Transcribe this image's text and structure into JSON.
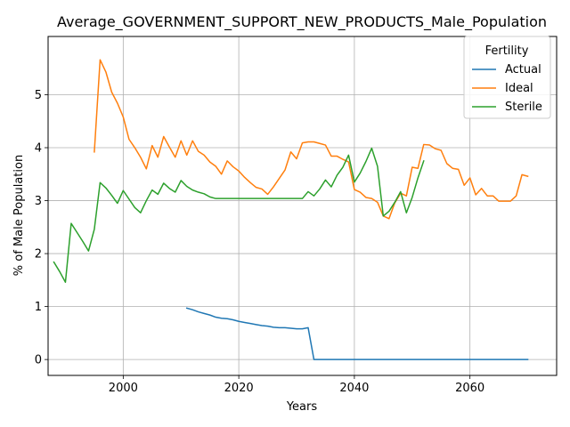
{
  "chart_data": {
    "type": "line",
    "title": "Average_GOVERNMENT_SUPPORT_NEW_PRODUCTS_Male_Population",
    "xlabel": "Years",
    "ylabel": "% of Male Population",
    "xlim": [
      1987,
      2075
    ],
    "ylim": [
      -0.3,
      6.1
    ],
    "xticks": [
      2000,
      2020,
      2040,
      2060
    ],
    "yticks": [
      0,
      1,
      2,
      3,
      4,
      5
    ],
    "grid": true,
    "legend": {
      "title": "Fertility",
      "position": "top-right"
    },
    "series": [
      {
        "name": "Actual",
        "color": "#1f77b4",
        "x": [
          2011,
          2012,
          2013,
          2014,
          2015,
          2016,
          2017,
          2018,
          2019,
          2020,
          2021,
          2022,
          2023,
          2024,
          2025,
          2026,
          2027,
          2028,
          2029,
          2030,
          2031,
          2032,
          2033,
          2034,
          2035,
          2040,
          2045,
          2050,
          2055,
          2060,
          2065,
          2070
        ],
        "y": [
          0.97,
          0.94,
          0.9,
          0.87,
          0.84,
          0.8,
          0.78,
          0.77,
          0.75,
          0.72,
          0.7,
          0.68,
          0.66,
          0.64,
          0.63,
          0.61,
          0.6,
          0.6,
          0.59,
          0.58,
          0.58,
          0.6,
          0.0,
          0.0,
          0.0,
          0.0,
          0.0,
          0.0,
          0.0,
          0.0,
          0.0,
          0.0
        ]
      },
      {
        "name": "Ideal",
        "color": "#ff7f0e",
        "x": [
          1995,
          1996,
          1997,
          1998,
          1999,
          2000,
          2001,
          2002,
          2003,
          2004,
          2005,
          2006,
          2007,
          2008,
          2009,
          2010,
          2011,
          2012,
          2013,
          2014,
          2015,
          2016,
          2017,
          2018,
          2019,
          2020,
          2021,
          2022,
          2023,
          2024,
          2025,
          2026,
          2027,
          2028,
          2029,
          2030,
          2031,
          2032,
          2033,
          2034,
          2035,
          2036,
          2037,
          2038,
          2039,
          2040,
          2041,
          2042,
          2043,
          2044,
          2045,
          2046,
          2047,
          2048,
          2049,
          2050,
          2051,
          2052,
          2053,
          2054,
          2055,
          2056,
          2057,
          2058,
          2059,
          2060,
          2061,
          2062,
          2063,
          2064,
          2065,
          2066,
          2067,
          2068,
          2069,
          2070
        ],
        "y": [
          3.92,
          5.66,
          5.43,
          5.05,
          4.84,
          4.58,
          4.16,
          4.0,
          3.82,
          3.6,
          4.04,
          3.82,
          4.21,
          4.01,
          3.82,
          4.13,
          3.86,
          4.13,
          3.93,
          3.86,
          3.73,
          3.65,
          3.5,
          3.75,
          3.64,
          3.56,
          3.44,
          3.34,
          3.25,
          3.22,
          3.12,
          3.26,
          3.42,
          3.58,
          3.92,
          3.79,
          4.09,
          4.11,
          4.11,
          4.08,
          4.05,
          3.84,
          3.84,
          3.78,
          3.73,
          3.21,
          3.16,
          3.06,
          3.04,
          2.97,
          2.71,
          2.66,
          2.96,
          3.14,
          3.09,
          3.63,
          3.61,
          4.06,
          4.05,
          3.98,
          3.95,
          3.7,
          3.61,
          3.59,
          3.29,
          3.43,
          3.11,
          3.23,
          3.09,
          3.09,
          2.99,
          2.99,
          2.99,
          3.09,
          3.49,
          3.46
        ]
      },
      {
        "name": "Sterile",
        "color": "#2ca02c",
        "x": [
          1988,
          1989,
          1990,
          1991,
          1992,
          1993,
          1994,
          1995,
          1996,
          1997,
          1998,
          1999,
          2000,
          2001,
          2002,
          2003,
          2004,
          2005,
          2006,
          2007,
          2008,
          2009,
          2010,
          2011,
          2012,
          2013,
          2014,
          2015,
          2016,
          2017,
          2018,
          2019,
          2020,
          2021,
          2022,
          2023,
          2024,
          2025,
          2026,
          2027,
          2028,
          2029,
          2030,
          2031,
          2032,
          2033,
          2034,
          2035,
          2036,
          2037,
          2038,
          2039,
          2040,
          2041,
          2042,
          2043,
          2044,
          2045,
          2046,
          2047,
          2048,
          2049,
          2050,
          2051,
          2052
        ],
        "y": [
          1.84,
          1.66,
          1.46,
          2.57,
          2.4,
          2.23,
          2.05,
          2.46,
          3.34,
          3.24,
          3.1,
          2.95,
          3.19,
          3.03,
          2.87,
          2.77,
          3.0,
          3.2,
          3.12,
          3.33,
          3.23,
          3.16,
          3.38,
          3.27,
          3.2,
          3.16,
          3.13,
          3.07,
          3.04,
          3.04,
          3.04,
          3.04,
          3.04,
          3.04,
          3.04,
          3.04,
          3.04,
          3.04,
          3.04,
          3.04,
          3.04,
          3.04,
          3.04,
          3.04,
          3.17,
          3.09,
          3.22,
          3.39,
          3.26,
          3.48,
          3.63,
          3.86,
          3.35,
          3.52,
          3.74,
          3.99,
          3.65,
          2.71,
          2.8,
          2.97,
          3.17,
          2.77,
          3.06,
          3.43,
          3.75
        ]
      }
    ]
  }
}
